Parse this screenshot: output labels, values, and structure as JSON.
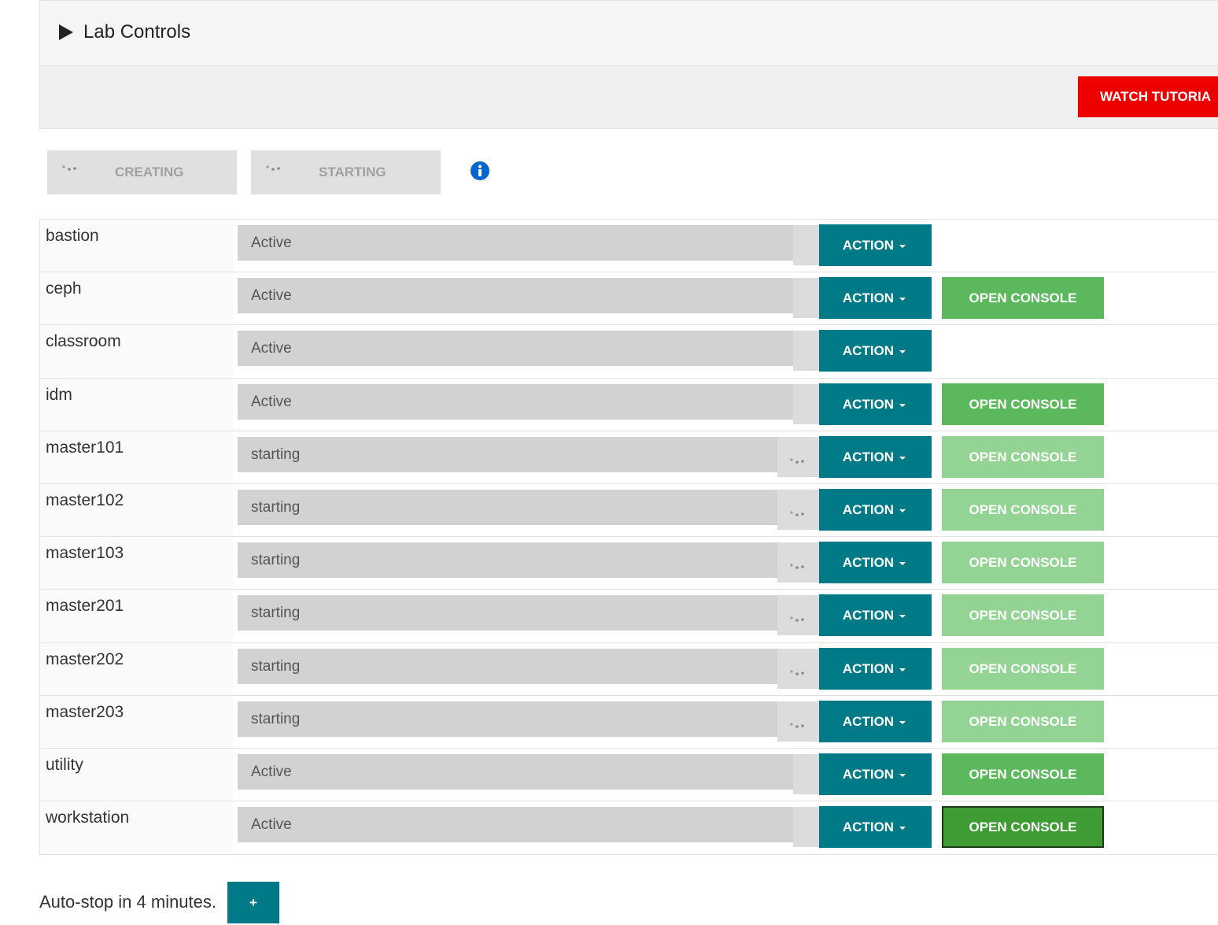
{
  "header": {
    "title": "Lab Controls",
    "tutorial_button": "WATCH TUTORIA"
  },
  "status_bar": {
    "buttons": [
      "CREATING",
      "STARTING"
    ]
  },
  "table": {
    "rows": [
      {
        "name": "bastion",
        "status": "Active",
        "action": "ACTION",
        "state": "ready"
      },
      {
        "name": "ceph",
        "status": "Active",
        "action": "ACTION",
        "console": "OPEN CONSOLE",
        "state": "ready"
      },
      {
        "name": "classroom",
        "status": "Active",
        "action": "ACTION",
        "state": "ready"
      },
      {
        "name": "idm",
        "status": "Active",
        "action": "ACTION",
        "console": "OPEN CONSOLE",
        "state": "ready"
      },
      {
        "name": "master101",
        "status": "starting",
        "action": "ACTION",
        "console": "OPEN CONSOLE",
        "state": "starting"
      },
      {
        "name": "master102",
        "status": "starting",
        "action": "ACTION",
        "console": "OPEN CONSOLE",
        "state": "starting"
      },
      {
        "name": "master103",
        "status": "starting",
        "action": "ACTION",
        "console": "OPEN CONSOLE",
        "state": "starting"
      },
      {
        "name": "master201",
        "status": "starting",
        "action": "ACTION",
        "console": "OPEN CONSOLE",
        "state": "starting"
      },
      {
        "name": "master202",
        "status": "starting",
        "action": "ACTION",
        "console": "OPEN CONSOLE",
        "state": "starting"
      },
      {
        "name": "master203",
        "status": "starting",
        "action": "ACTION",
        "console": "OPEN CONSOLE",
        "state": "starting"
      },
      {
        "name": "utility",
        "status": "Active",
        "action": "ACTION",
        "console": "OPEN CONSOLE",
        "state": "ready"
      },
      {
        "name": "workstation",
        "status": "Active",
        "action": "ACTION",
        "console": "OPEN CONSOLE",
        "state": "focused"
      }
    ]
  },
  "footer": {
    "text": "Auto-stop in 4 minutes.",
    "button": "+"
  }
}
